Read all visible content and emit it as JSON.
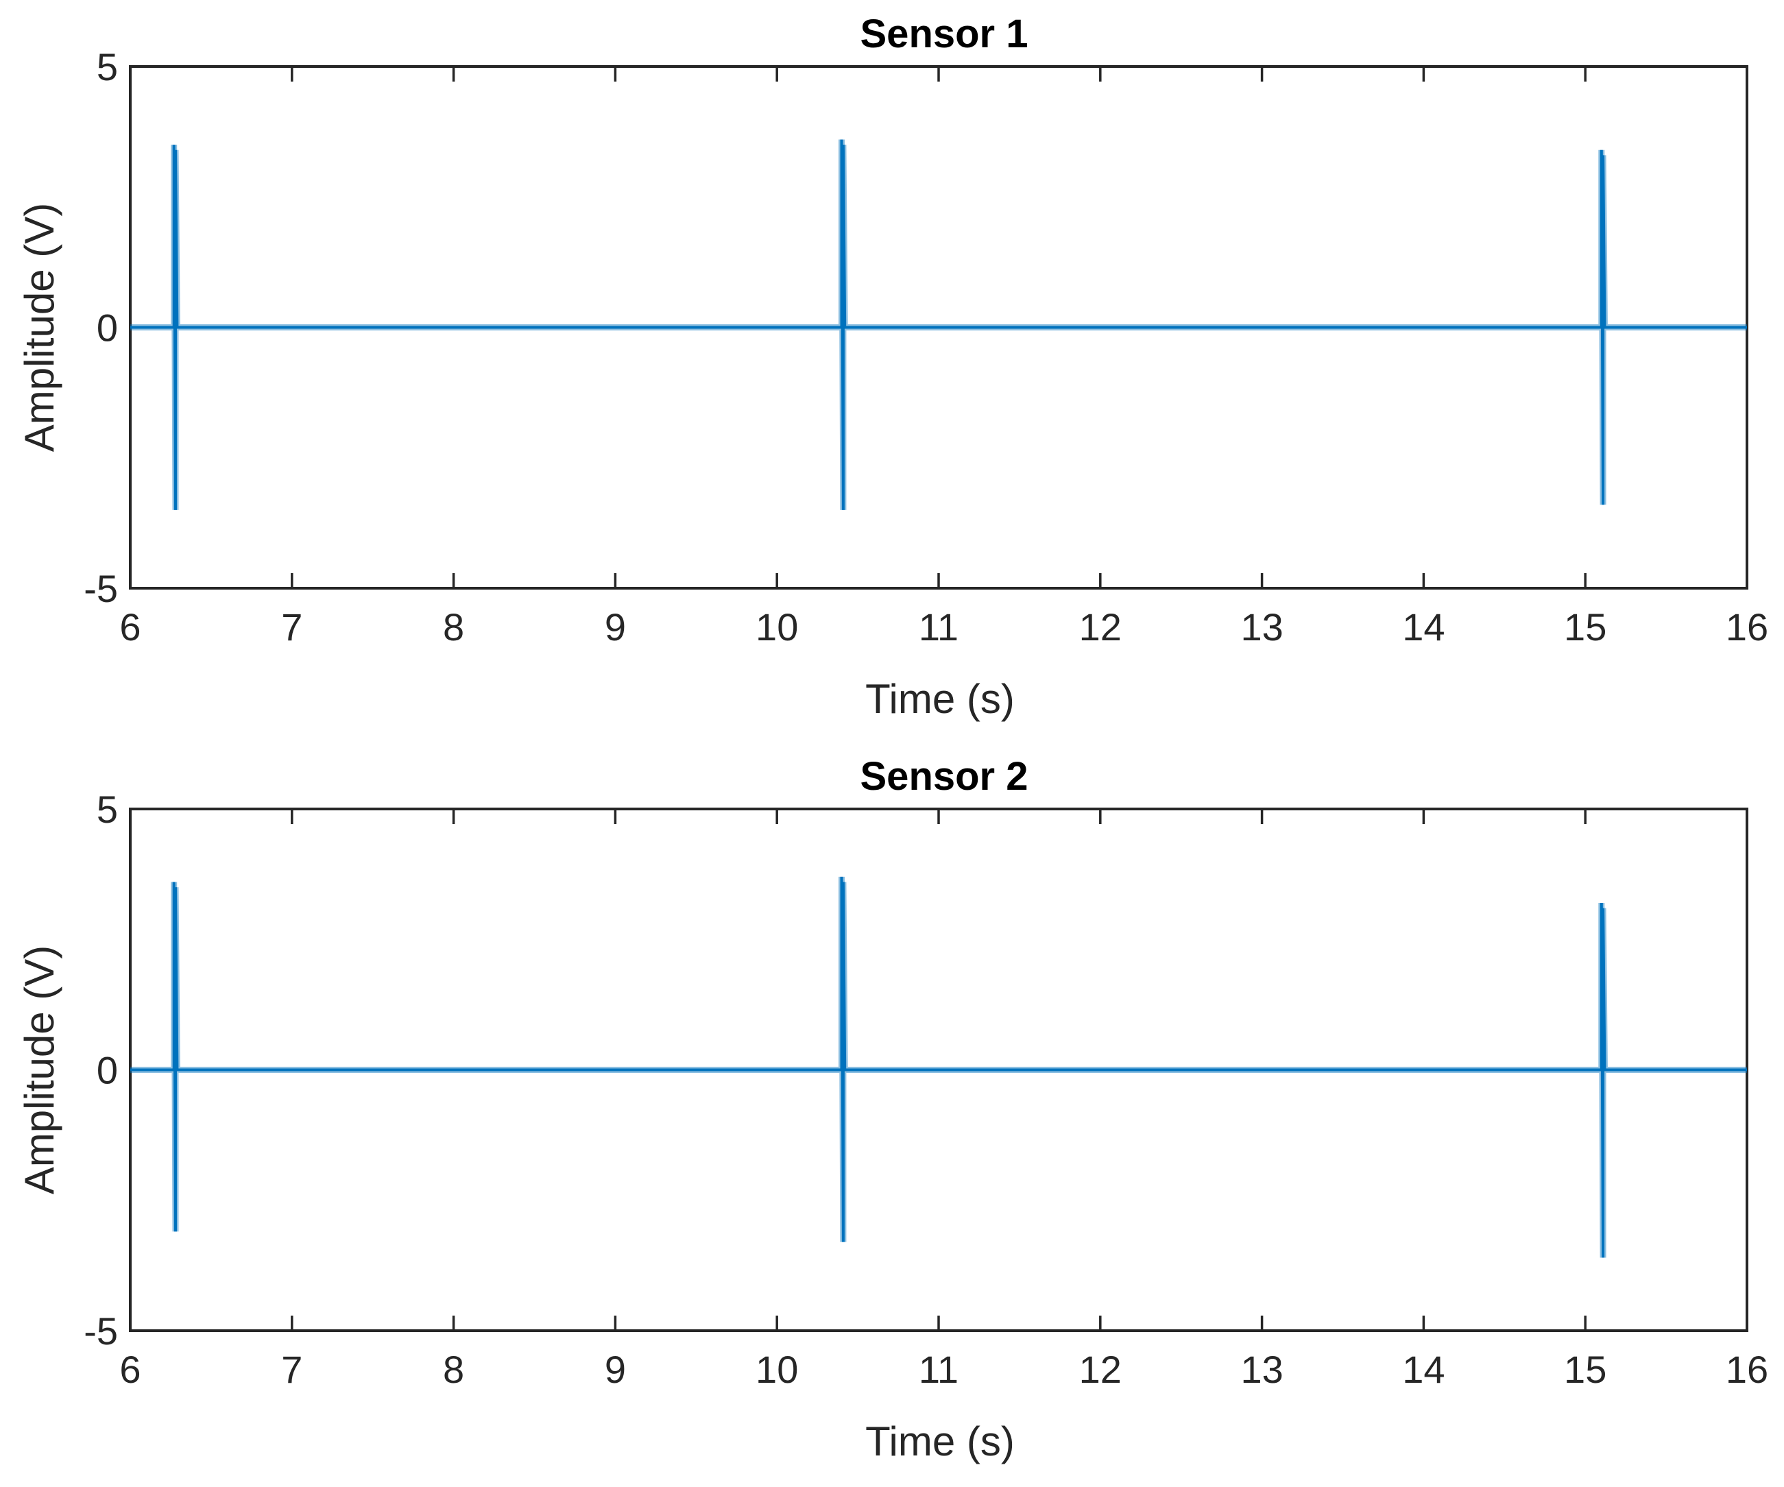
{
  "colors": {
    "series": "#0072BD",
    "axes": "#262626",
    "title": "#000000",
    "background": "#ffffff"
  },
  "chart_data": [
    {
      "type": "line",
      "title": "Sensor 1",
      "xlabel": "Time (s)",
      "ylabel": "Amplitude (V)",
      "xlim": [
        6,
        16
      ],
      "ylim": [
        -5,
        5
      ],
      "xticks": [
        6,
        7,
        8,
        9,
        10,
        11,
        12,
        13,
        14,
        15,
        16
      ],
      "yticks": [
        -5,
        0,
        5
      ],
      "xtick_labels": [
        "6",
        "7",
        "8",
        "9",
        "10",
        "11",
        "12",
        "13",
        "14",
        "15",
        "16"
      ],
      "ytick_labels": [
        "-5",
        "0",
        "5"
      ],
      "grid": false,
      "series": [
        {
          "x": [
            6,
            6.27,
            6.27,
            6.28,
            6.28,
            6.29,
            10.4,
            10.4,
            10.41,
            10.41,
            10.42,
            15.1,
            15.1,
            15.11,
            15.11,
            15.12,
            16
          ],
          "y": [
            0,
            0,
            3.5,
            -3.5,
            3.4,
            0,
            0,
            3.6,
            -3.5,
            3.5,
            0,
            0,
            3.4,
            -3.4,
            3.3,
            0,
            0
          ]
        }
      ]
    },
    {
      "type": "line",
      "title": "Sensor 2",
      "xlabel": "Time (s)",
      "ylabel": "Amplitude (V)",
      "xlim": [
        6,
        16
      ],
      "ylim": [
        -5,
        5
      ],
      "xticks": [
        6,
        7,
        8,
        9,
        10,
        11,
        12,
        13,
        14,
        15,
        16
      ],
      "yticks": [
        -5,
        0,
        5
      ],
      "xtick_labels": [
        "6",
        "7",
        "8",
        "9",
        "10",
        "11",
        "12",
        "13",
        "14",
        "15",
        "16"
      ],
      "ytick_labels": [
        "-5",
        "0",
        "5"
      ],
      "grid": false,
      "series": [
        {
          "x": [
            6,
            6.27,
            6.27,
            6.28,
            6.28,
            6.29,
            10.4,
            10.4,
            10.41,
            10.41,
            10.42,
            15.1,
            15.1,
            15.11,
            15.11,
            15.12,
            16
          ],
          "y": [
            0,
            0,
            3.6,
            -3.1,
            3.5,
            0,
            0,
            3.7,
            -3.3,
            3.6,
            0,
            0,
            3.2,
            -3.6,
            3.1,
            0,
            0
          ]
        }
      ]
    }
  ]
}
